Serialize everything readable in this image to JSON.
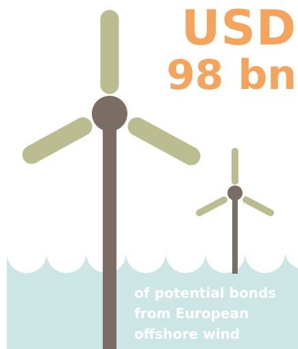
{
  "headline": {
    "currency": "USD",
    "amount": "98 bn"
  },
  "caption": {
    "lines": [
      "of potential bonds",
      "from European",
      "offshore wind"
    ]
  },
  "illustration": {
    "icons": [
      "large-wind-turbine-icon",
      "small-wind-turbine-icon",
      "sea-waves-icon"
    ]
  },
  "colors": {
    "accent": "#F6A35C",
    "sea": "#CBE6E5",
    "blade": "#BBBC8F",
    "tower": "#7B6D63",
    "caption_text": "#FFFFFF",
    "background": "#FFFFFF"
  }
}
